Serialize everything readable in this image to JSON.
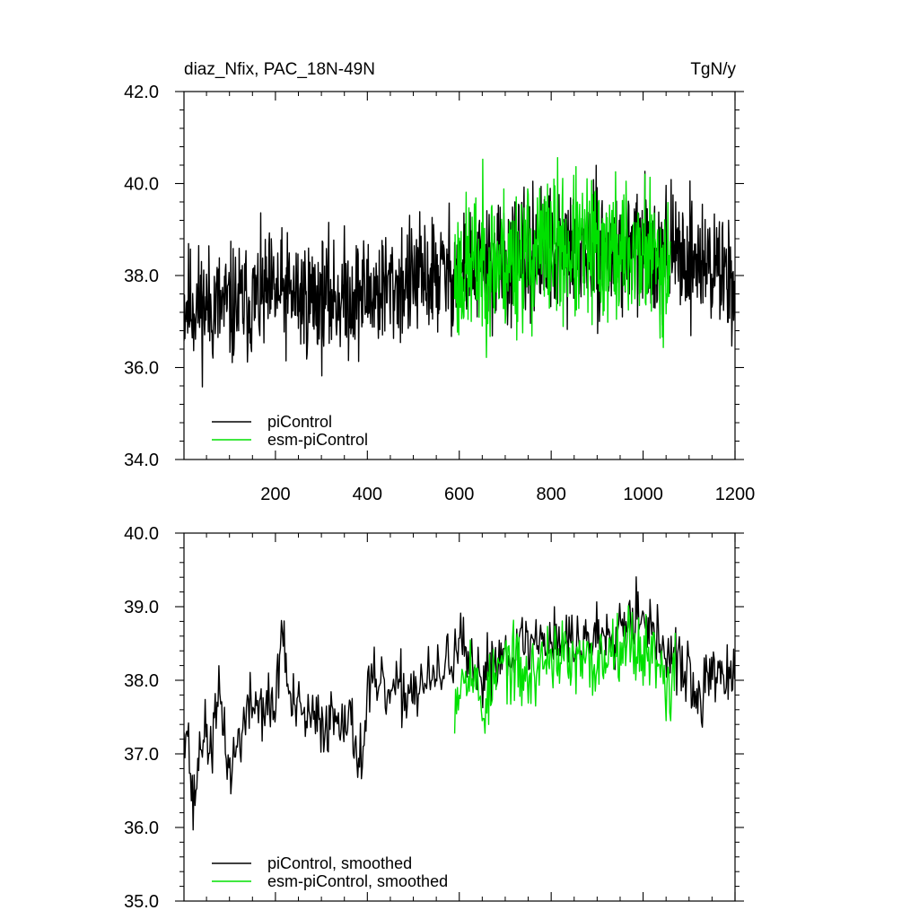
{
  "chart_data": [
    {
      "type": "line",
      "panel": "top",
      "title_left": "diaz_Nfix, PAC_18N-49N",
      "title_right": "TgN/y",
      "xlabel": "",
      "ylabel": "",
      "xlim": [
        1,
        1200
      ],
      "ylim": [
        34.0,
        42.0
      ],
      "x_ticks": [
        200,
        400,
        600,
        800,
        1000,
        1200
      ],
      "x_tick_labels": [
        "200",
        "400",
        "600",
        "800",
        "1000",
        "1200"
      ],
      "y_ticks": [
        34.0,
        36.0,
        38.0,
        40.0,
        42.0
      ],
      "y_tick_labels": [
        "34.0",
        "36.0",
        "38.0",
        "40.0",
        "42.0"
      ],
      "legend_position": "bottom-left",
      "series": [
        {
          "name": "piControl",
          "color": "#000000",
          "x": [
            1,
            100,
            200,
            300,
            400,
            500,
            600,
            700,
            800,
            900,
            1000,
            1100,
            1200
          ],
          "values": [
            37.4,
            37.3,
            37.6,
            37.5,
            37.6,
            37.9,
            38.1,
            38.3,
            38.5,
            38.5,
            38.6,
            38.4,
            38.0
          ],
          "noise_amplitude": 1.3,
          "samples": 1200,
          "x_start": 1,
          "x_step": 1,
          "rendering_seed": 11
        },
        {
          "name": "esm-piControl",
          "color": "#00e000",
          "x": [
            590,
            650,
            700,
            800,
            900,
            1000,
            1060
          ],
          "values": [
            38.0,
            38.3,
            38.3,
            38.6,
            38.5,
            38.5,
            38.2
          ],
          "noise_amplitude": 1.6,
          "samples": 470,
          "x_start": 590,
          "x_step": 1,
          "rendering_seed": 23
        }
      ]
    },
    {
      "type": "line",
      "panel": "bottom",
      "xlabel": "",
      "ylabel": "",
      "xlim": [
        1,
        1200
      ],
      "ylim": [
        35.0,
        40.0
      ],
      "x_ticks": [
        200,
        400,
        600,
        800,
        1000,
        1200
      ],
      "y_ticks": [
        35.0,
        36.0,
        37.0,
        38.0,
        39.0,
        40.0
      ],
      "y_tick_labels": [
        "35.0",
        "36.0",
        "37.0",
        "38.0",
        "39.0",
        "40.0"
      ],
      "legend_position": "bottom-left",
      "series": [
        {
          "name": "piControl, smoothed",
          "color": "#000000",
          "x": [
            1,
            10,
            20,
            40,
            60,
            80,
            100,
            120,
            150,
            200,
            215,
            230,
            260,
            300,
            350,
            390,
            400,
            450,
            500,
            550,
            600,
            640,
            660,
            700,
            750,
            800,
            850,
            900,
            1000,
            1020,
            1060,
            1100,
            1120,
            1150,
            1200
          ],
          "values": [
            37.5,
            37.3,
            36.2,
            37.3,
            37.1,
            37.8,
            36.7,
            37.2,
            37.7,
            37.6,
            38.8,
            37.7,
            37.5,
            37.4,
            37.6,
            36.9,
            37.9,
            37.8,
            37.9,
            38.0,
            38.5,
            37.9,
            38.2,
            38.4,
            38.5,
            38.6,
            38.5,
            38.6,
            39.0,
            38.6,
            38.3,
            38.1,
            37.6,
            38.2,
            37.9
          ],
          "noise_amplitude": 0.45,
          "samples": 600,
          "x_start": 1,
          "x_step": 2,
          "rendering_seed": 37
        },
        {
          "name": "esm-piControl, smoothed",
          "color": "#00e000",
          "x": [
            590,
            620,
            650,
            700,
            750,
            800,
            850,
            900,
            950,
            1000,
            1040,
            1060,
            1070
          ],
          "values": [
            37.8,
            38.3,
            37.6,
            38.3,
            38.0,
            38.4,
            38.2,
            38.2,
            38.6,
            38.4,
            38.3,
            37.6,
            38.6
          ],
          "noise_amplitude": 0.5,
          "samples": 241,
          "x_start": 590,
          "x_step": 2,
          "rendering_seed": 53
        }
      ]
    }
  ]
}
